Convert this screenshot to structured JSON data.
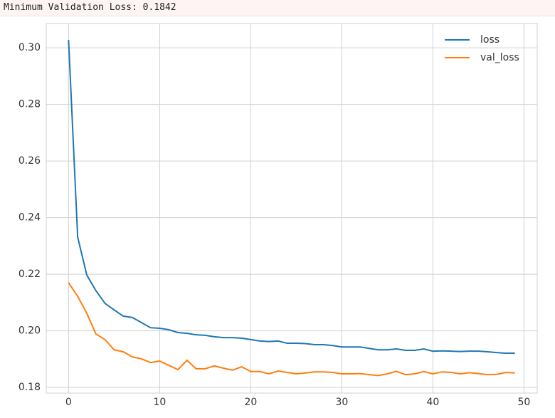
{
  "output_text": "Minimum Validation Loss: 0.1842",
  "chart_data": {
    "type": "line",
    "x": [
      0,
      1,
      2,
      3,
      4,
      5,
      6,
      7,
      8,
      9,
      10,
      11,
      12,
      13,
      14,
      15,
      16,
      17,
      18,
      19,
      20,
      21,
      22,
      23,
      24,
      25,
      26,
      27,
      28,
      29,
      30,
      31,
      32,
      33,
      34,
      35,
      36,
      37,
      38,
      39,
      40,
      41,
      42,
      43,
      44,
      45,
      46,
      47,
      48,
      49
    ],
    "series": [
      {
        "name": "loss",
        "color": "#1f77b4",
        "values": [
          0.3028,
          0.2331,
          0.2197,
          0.2142,
          0.2097,
          0.2074,
          0.2052,
          0.2047,
          0.2029,
          0.2011,
          0.2009,
          0.2004,
          0.1994,
          0.1991,
          0.1986,
          0.1984,
          0.1979,
          0.1976,
          0.1976,
          0.1974,
          0.1969,
          0.1964,
          0.1962,
          0.1964,
          0.1956,
          0.1956,
          0.1955,
          0.1951,
          0.1951,
          0.1948,
          0.1943,
          0.1943,
          0.1943,
          0.1938,
          0.1933,
          0.1933,
          0.1936,
          0.1931,
          0.1931,
          0.1936,
          0.1928,
          0.1929,
          0.1928,
          0.1927,
          0.1928,
          0.1928,
          0.1926,
          0.1923,
          0.1921,
          0.1921
        ]
      },
      {
        "name": "val_loss",
        "color": "#ff7f0e",
        "values": [
          0.217,
          0.2122,
          0.2062,
          0.1989,
          0.1969,
          0.1933,
          0.1926,
          0.1908,
          0.1901,
          0.1888,
          0.1893,
          0.1878,
          0.1863,
          0.1896,
          0.1866,
          0.1866,
          0.1876,
          0.1868,
          0.1861,
          0.1873,
          0.1856,
          0.1856,
          0.1848,
          0.1858,
          0.1853,
          0.1848,
          0.1851,
          0.1855,
          0.1855,
          0.1853,
          0.1848,
          0.1848,
          0.1849,
          0.1845,
          0.1842,
          0.1848,
          0.1857,
          0.1845,
          0.1848,
          0.1856,
          0.1848,
          0.1855,
          0.1853,
          0.1848,
          0.1852,
          0.1849,
          0.1845,
          0.1846,
          0.1853,
          0.1851
        ]
      }
    ],
    "xlim": [
      -2.45,
      51.45
    ],
    "ylim": [
      0.178,
      0.3086
    ],
    "xticks": [
      0,
      10,
      20,
      30,
      40,
      50
    ],
    "yticks": [
      0.18,
      {
        "value": 0.2,
        "label": "0.20"
      },
      0.22,
      0.24,
      0.26,
      0.28,
      {
        "value": 0.3,
        "label": "0.30"
      }
    ],
    "grid": true,
    "legend": "upper right"
  }
}
